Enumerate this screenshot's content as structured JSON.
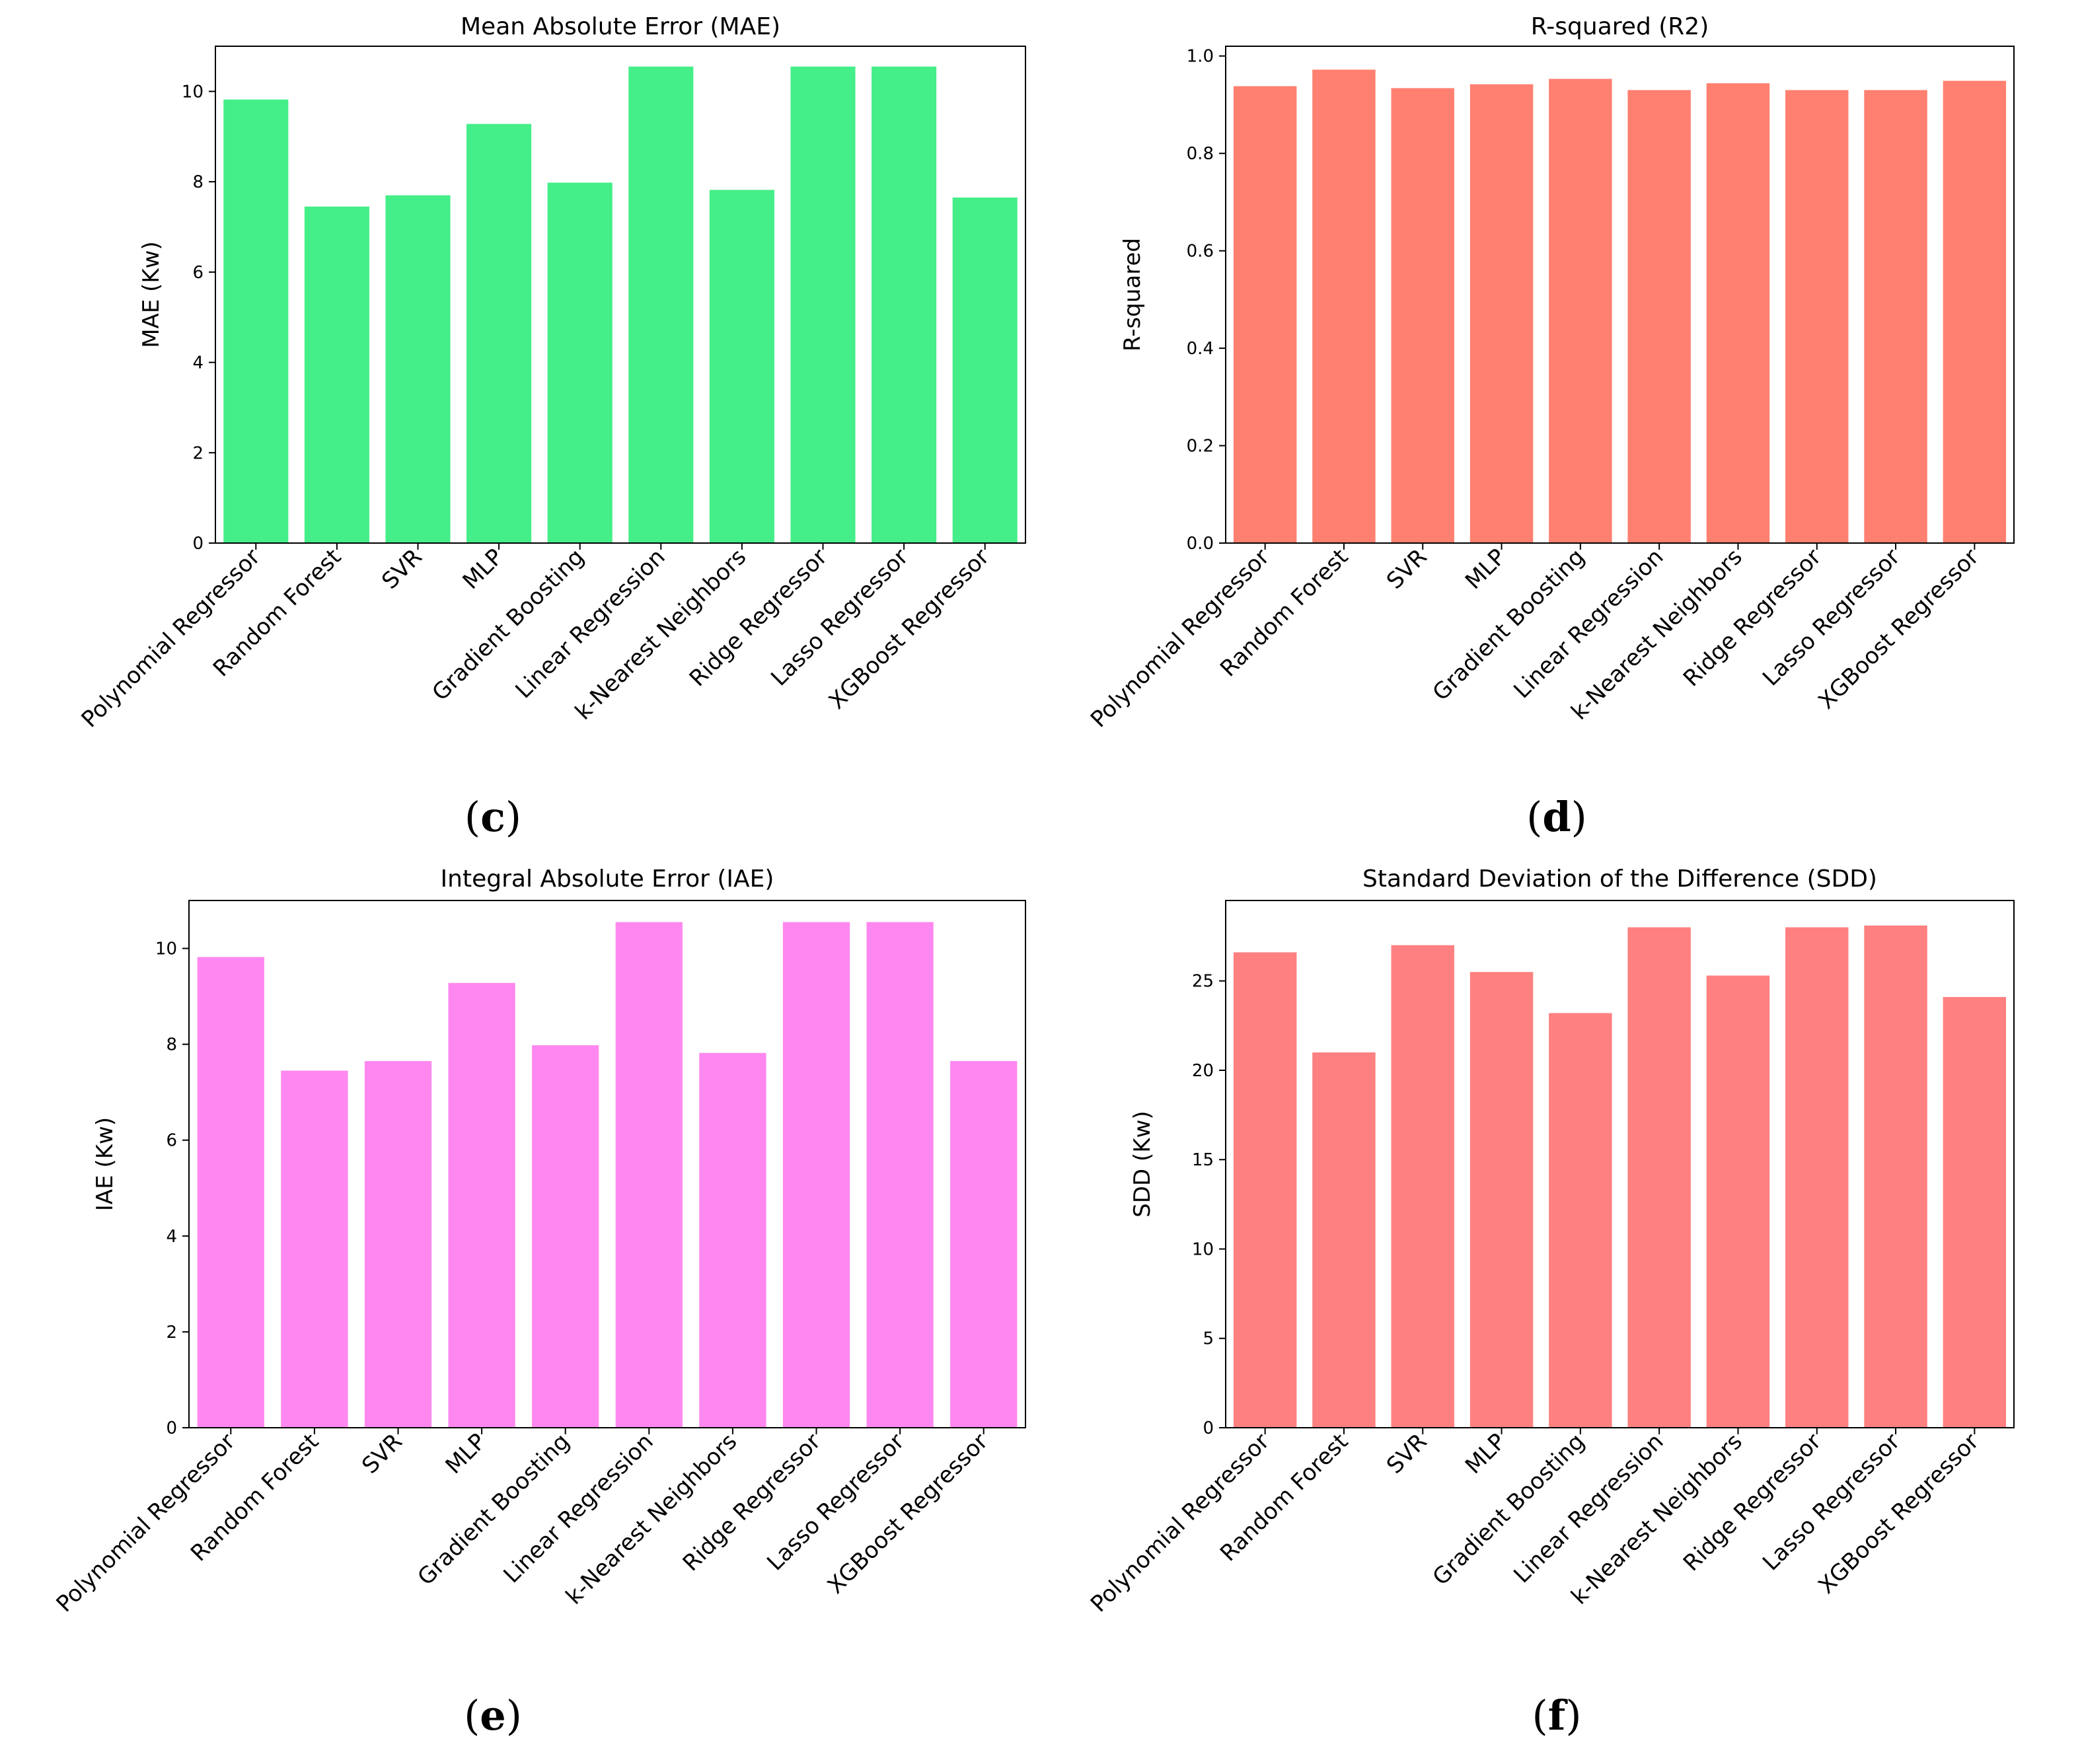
{
  "categories": [
    "Polynomial Regressor",
    "Random Forest",
    "SVR",
    "MLP",
    "Gradient Boosting",
    "Linear Regression",
    "k-Nearest Neighbors",
    "Ridge Regressor",
    "Lasso Regressor",
    "XGBoost Regressor"
  ],
  "chart_data": [
    {
      "type": "bar",
      "panel": "c",
      "title": "Mean Absolute Error (MAE)",
      "xlabel": "",
      "ylabel": "MAE (Kw)",
      "categories": [
        "Polynomial Regressor",
        "Random Forest",
        "SVR",
        "MLP",
        "Gradient Boosting",
        "Linear Regression",
        "k-Nearest Neighbors",
        "Ridge Regressor",
        "Lasso Regressor",
        "XGBoost Regressor"
      ],
      "values": [
        9.82,
        7.45,
        7.7,
        9.28,
        7.98,
        10.55,
        7.82,
        10.55,
        10.55,
        7.65
      ],
      "ylim": [
        0,
        11.0
      ],
      "yticks": [
        0,
        2,
        4,
        6,
        8,
        10
      ],
      "ytick_labels": [
        "0",
        "2",
        "4",
        "6",
        "8",
        "10"
      ],
      "color": "#44ee88",
      "grid": false
    },
    {
      "type": "bar",
      "panel": "d",
      "title": "R-squared (R2)",
      "xlabel": "",
      "ylabel": "R-squared",
      "categories": [
        "Polynomial Regressor",
        "Random Forest",
        "SVR",
        "MLP",
        "Gradient Boosting",
        "Linear Regression",
        "k-Nearest Neighbors",
        "Ridge Regressor",
        "Lasso Regressor",
        "XGBoost Regressor"
      ],
      "values": [
        0.938,
        0.972,
        0.934,
        0.942,
        0.953,
        0.93,
        0.944,
        0.93,
        0.93,
        0.949
      ],
      "ylim": [
        0,
        1.02
      ],
      "yticks": [
        0,
        0.2,
        0.4,
        0.6,
        0.8,
        1.0
      ],
      "ytick_labels": [
        "0.0",
        "0.2",
        "0.4",
        "0.6",
        "0.8",
        "1.0"
      ],
      "color": "#ff8070",
      "grid": false
    },
    {
      "type": "bar",
      "panel": "e",
      "title": "Integral Absolute Error (IAE)",
      "xlabel": "",
      "ylabel": "IAE (Kw)",
      "categories": [
        "Polynomial Regressor",
        "Random Forest",
        "SVR",
        "MLP",
        "Gradient Boosting",
        "Linear Regression",
        "k-Nearest Neighbors",
        "Ridge Regressor",
        "Lasso Regressor",
        "XGBoost Regressor"
      ],
      "values": [
        9.82,
        7.45,
        7.65,
        9.28,
        7.98,
        10.55,
        7.82,
        10.55,
        10.55,
        7.65
      ],
      "ylim": [
        0,
        11.0
      ],
      "yticks": [
        0,
        2,
        4,
        6,
        8,
        10
      ],
      "ytick_labels": [
        "0",
        "2",
        "4",
        "6",
        "8",
        "10"
      ],
      "color": "#ff88f0",
      "grid": false
    },
    {
      "type": "bar",
      "panel": "f",
      "title": "Standard Deviation of the Difference (SDD)",
      "xlabel": "",
      "ylabel": "SDD (Kw)",
      "categories": [
        "Polynomial Regressor",
        "Random Forest",
        "SVR",
        "MLP",
        "Gradient Boosting",
        "Linear Regression",
        "k-Nearest Neighbors",
        "Ridge Regressor",
        "Lasso Regressor",
        "XGBoost Regressor"
      ],
      "values": [
        26.6,
        21.0,
        27.0,
        25.5,
        23.2,
        28.0,
        25.3,
        28.0,
        28.1,
        24.1
      ],
      "ylim": [
        0,
        29.5
      ],
      "yticks": [
        0,
        5,
        10,
        15,
        20,
        25
      ],
      "ytick_labels": [
        "0",
        "5",
        "10",
        "15",
        "20",
        "25"
      ],
      "color": "#ff8080",
      "grid": false
    }
  ],
  "panel_labels": [
    {
      "open": "(",
      "letter": "c",
      "close": ")"
    },
    {
      "open": "(",
      "letter": "d",
      "close": ")"
    },
    {
      "open": "(",
      "letter": "e",
      "close": ")"
    },
    {
      "open": "(",
      "letter": "f",
      "close": ")"
    }
  ]
}
